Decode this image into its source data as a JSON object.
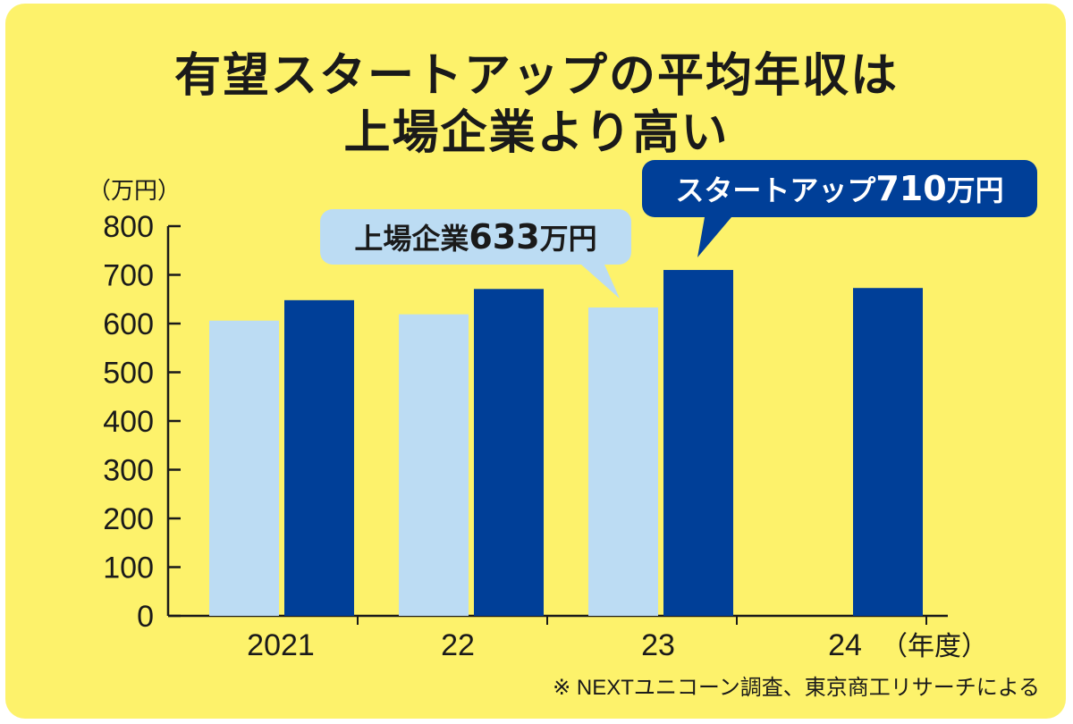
{
  "title": {
    "line1": "有望スタートアップの平均年収は",
    "line2": "上場企業より高い"
  },
  "colors": {
    "background": "#fdf26b",
    "listed": "#bcdcf3",
    "startup": "#003f98",
    "axis": "#1a1a1a"
  },
  "chart_data": {
    "type": "bar",
    "categories": [
      "2021",
      "22",
      "23",
      "24"
    ],
    "series": [
      {
        "name": "上場企業",
        "values": [
          606,
          619,
          633,
          null
        ]
      },
      {
        "name": "スタートアップ",
        "values": [
          648,
          671,
          710,
          673
        ]
      }
    ],
    "ylim": [
      0,
      800
    ],
    "y_ticks": [
      "0",
      "100",
      "200",
      "300",
      "400",
      "500",
      "600",
      "700",
      "800"
    ],
    "y_unit": "（万円）",
    "x_unit": "（年度）",
    "grid": false,
    "annotations": [
      {
        "series": 0,
        "index": 2,
        "prefix": "上場企業",
        "value": "633",
        "suffix": "万円"
      },
      {
        "series": 1,
        "index": 2,
        "prefix": "スタートアップ",
        "value": "710",
        "suffix": "万円"
      }
    ],
    "source": "※ NEXTユニコーン調査、東京商工リサーチによる"
  }
}
